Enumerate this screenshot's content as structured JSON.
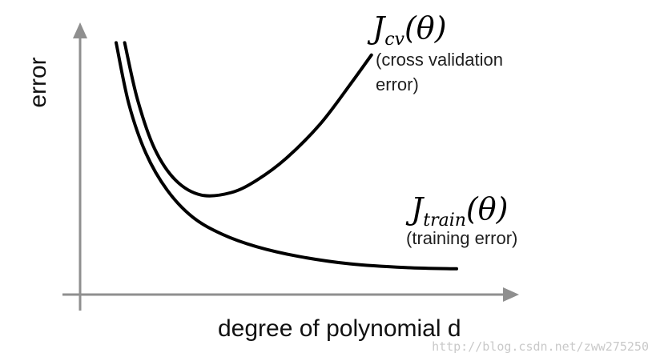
{
  "chart_data": {
    "type": "line",
    "title": "",
    "xlabel": "degree of polynomial d",
    "ylabel": "error",
    "grid": false,
    "legend": "none",
    "x_tick_labels": [],
    "y_tick_labels": [],
    "x": [
      0.2,
      0.5,
      0.9,
      1.4,
      2,
      3,
      4,
      5,
      6,
      7,
      8
    ],
    "series": [
      {
        "name": "J_cv(θ)",
        "label_main": "J",
        "label_sub": "cv",
        "label_tail": "(θ)",
        "description": [
          "(cross validation",
          "error)"
        ],
        "x": [
          0.2,
          0.5,
          0.9,
          1.4,
          2.0,
          2.7,
          3.3,
          4.0,
          4.8,
          5.5,
          6.0
        ],
        "values": [
          0.95,
          0.72,
          0.52,
          0.39,
          0.33,
          0.34,
          0.39,
          0.48,
          0.62,
          0.78,
          0.9
        ]
      },
      {
        "name": "J_train(θ)",
        "label_main": "J",
        "label_sub": "train",
        "label_tail": "(θ)",
        "description": [
          "(training error)"
        ],
        "x": [
          0.0,
          0.3,
          0.7,
          1.2,
          1.8,
          2.5,
          3.3,
          4.3,
          5.5,
          6.8,
          8.0
        ],
        "values": [
          0.95,
          0.7,
          0.5,
          0.35,
          0.24,
          0.17,
          0.12,
          0.08,
          0.05,
          0.035,
          0.03
        ]
      }
    ],
    "colors": {
      "curve": "#000000",
      "axis": "#8f8f8f"
    }
  },
  "watermark": "http://blog.csdn.net/zww275250"
}
